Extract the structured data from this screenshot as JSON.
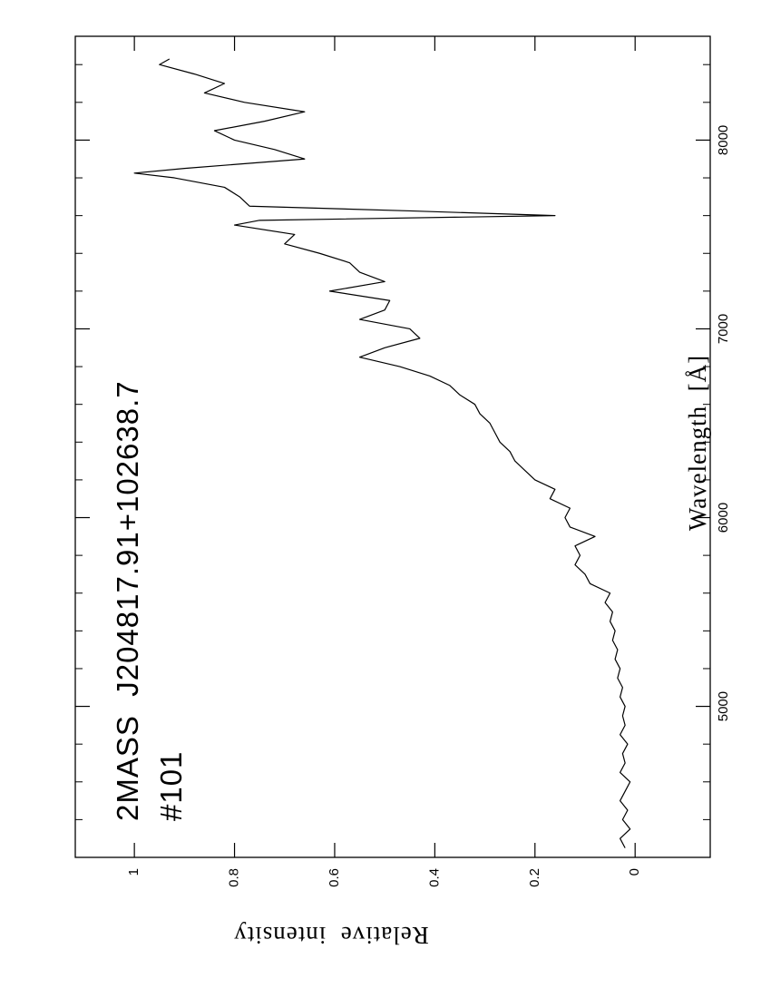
{
  "chart_data": {
    "type": "line",
    "title": "2MASS  J204817.91+102638.7",
    "subtitle": "#101",
    "xlabel": "Wavelength  [Å]",
    "ylabel": "Relative  intensity",
    "x": [
      4250,
      4300,
      4350,
      4400,
      4450,
      4500,
      4550,
      4600,
      4650,
      4700,
      4750,
      4800,
      4850,
      4900,
      4950,
      5000,
      5050,
      5100,
      5150,
      5200,
      5250,
      5300,
      5350,
      5400,
      5450,
      5500,
      5550,
      5600,
      5650,
      5700,
      5750,
      5800,
      5850,
      5900,
      5950,
      6000,
      6050,
      6100,
      6150,
      6200,
      6250,
      6300,
      6350,
      6400,
      6450,
      6500,
      6550,
      6600,
      6650,
      6700,
      6750,
      6800,
      6850,
      6900,
      6950,
      7000,
      7050,
      7100,
      7150,
      7200,
      7250,
      7300,
      7350,
      7400,
      7450,
      7500,
      7550,
      7575,
      7600,
      7625,
      7650,
      7700,
      7750,
      7800,
      7825,
      7850,
      7900,
      7950,
      8000,
      8050,
      8100,
      8150,
      8200,
      8250,
      8300,
      8350,
      8400,
      8430
    ],
    "values": [
      0.02,
      0.03,
      0.01,
      0.025,
      0.015,
      0.03,
      0.02,
      0.01,
      0.03,
      0.02,
      0.025,
      0.015,
      0.03,
      0.02,
      0.025,
      0.02,
      0.03,
      0.025,
      0.035,
      0.03,
      0.04,
      0.035,
      0.045,
      0.04,
      0.05,
      0.045,
      0.06,
      0.05,
      0.09,
      0.1,
      0.12,
      0.11,
      0.12,
      0.08,
      0.13,
      0.14,
      0.13,
      0.17,
      0.16,
      0.2,
      0.22,
      0.24,
      0.25,
      0.27,
      0.28,
      0.29,
      0.31,
      0.32,
      0.35,
      0.37,
      0.41,
      0.47,
      0.55,
      0.5,
      0.43,
      0.45,
      0.55,
      0.5,
      0.49,
      0.61,
      0.5,
      0.55,
      0.57,
      0.63,
      0.7,
      0.68,
      0.8,
      0.75,
      0.16,
      0.45,
      0.77,
      0.79,
      0.82,
      0.92,
      1.0,
      0.9,
      0.66,
      0.72,
      0.8,
      0.84,
      0.74,
      0.66,
      0.78,
      0.86,
      0.82,
      0.88,
      0.95,
      0.93
    ],
    "color": "#000000",
    "xlim": [
      4200,
      8550
    ],
    "xticks": [
      5000,
      6000,
      7000,
      8000
    ],
    "xminor_ticks": [
      4400,
      4600,
      4800,
      5200,
      5400,
      5600,
      5800,
      6200,
      6400,
      6600,
      6800,
      7200,
      7400,
      7600,
      7800,
      8200,
      8400
    ],
    "ylim": [
      -0.15,
      1.118
    ],
    "yticks": [
      0,
      0.2,
      0.4,
      0.6,
      0.8,
      1
    ],
    "grid": false
  }
}
